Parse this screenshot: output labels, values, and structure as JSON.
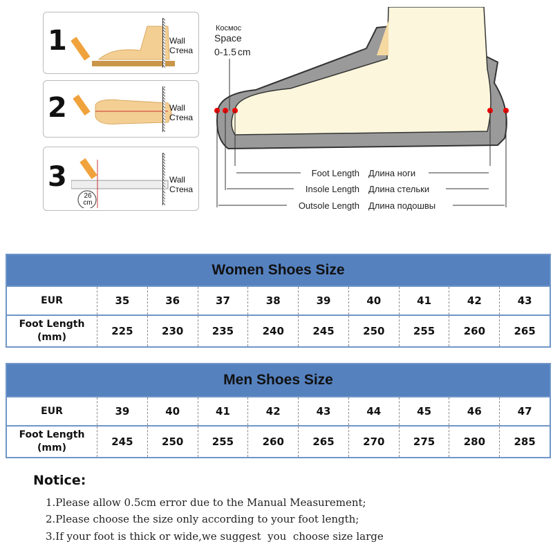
{
  "steps": [
    {
      "number": "1",
      "wall_en": "Wall",
      "wall_ru": "Стена"
    },
    {
      "number": "2",
      "wall_en": "Wall",
      "wall_ru": "Стена"
    },
    {
      "number": "3",
      "wall_en": "Wall",
      "wall_ru": "Стена",
      "ruler_value": "26",
      "ruler_unit": "cm"
    }
  ],
  "diagram": {
    "space_ru": "Космос",
    "space_en": "Space",
    "space_range": "0-1.5",
    "space_unit": "cm",
    "foot_length_en": "Foot Length",
    "foot_length_ru": "Длина ноги",
    "insole_length_en": "Insole Length",
    "insole_length_ru": "Длина стельки",
    "outsole_length_en": "Outsole Length",
    "outsole_length_ru": "Длина подошвы"
  },
  "women": {
    "title": "Women Shoes Size",
    "eur_label": "EUR",
    "foot_label": "Foot Length",
    "foot_unit": "(mm)",
    "eur": [
      "35",
      "36",
      "37",
      "38",
      "39",
      "40",
      "41",
      "42",
      "43"
    ],
    "foot": [
      "225",
      "230",
      "235",
      "240",
      "245",
      "250",
      "255",
      "260",
      "265"
    ]
  },
  "men": {
    "title": "Men Shoes Size",
    "eur_label": "EUR",
    "foot_label": "Foot Length",
    "foot_unit": "(mm)",
    "eur": [
      "39",
      "40",
      "41",
      "42",
      "43",
      "44",
      "45",
      "46",
      "47"
    ],
    "foot": [
      "245",
      "250",
      "255",
      "260",
      "265",
      "270",
      "275",
      "280",
      "285"
    ]
  },
  "notice": {
    "title": "Notice:",
    "lines": [
      "1.Please allow 0.5cm error due to the Manual Measurement;",
      "2.Please choose the size only according to your foot length;",
      "3.If your foot is thick or wide,we suggest  you  choose size large"
    ]
  },
  "colors": {
    "header_blue": "#5581bf",
    "border_blue": "#6f95c8",
    "foot": "#f5d9a0",
    "shoe_gray": "#9a9a9a"
  }
}
